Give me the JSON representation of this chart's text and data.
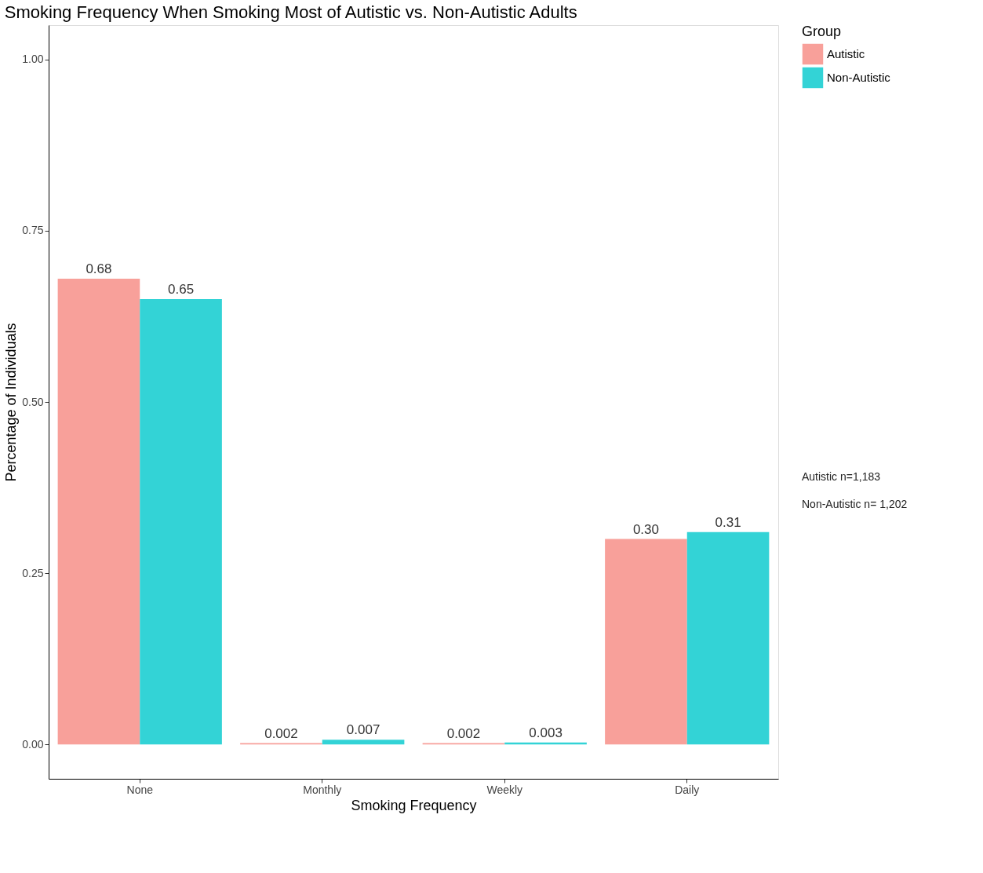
{
  "chart_data": {
    "type": "bar",
    "title": "Smoking Frequency When Smoking Most of Autistic vs. Non-Autistic Adults",
    "xlabel": "Smoking Frequency",
    "ylabel": "Percentage of Individuals",
    "legend_title": "Group",
    "categories": [
      "None",
      "Monthly",
      "Weekly",
      "Daily"
    ],
    "series": [
      {
        "name": "Autistic",
        "color": "#f8a09a",
        "values": [
          0.68,
          0.002,
          0.002,
          0.3
        ],
        "value_labels": [
          "0.68",
          "0.002",
          "0.002",
          "0.30"
        ]
      },
      {
        "name": "Non-Autistic",
        "color": "#33d3d6",
        "values": [
          0.65,
          0.007,
          0.003,
          0.31
        ],
        "value_labels": [
          "0.65",
          "0.007",
          "0.003",
          "0.31"
        ]
      }
    ],
    "ylim": [
      -0.05,
      1.05
    ],
    "yticks": [
      {
        "value": 0,
        "label": "0.00"
      },
      {
        "value": 0.25,
        "label": "0.25"
      },
      {
        "value": 0.5,
        "label": "0.50"
      },
      {
        "value": 0.75,
        "label": "0.75"
      },
      {
        "value": 1,
        "label": "1.00"
      }
    ],
    "grid": false,
    "legend": "right",
    "annotations": [
      "Autistic n=1,183",
      "Non-Autistic n= 1,202"
    ]
  }
}
